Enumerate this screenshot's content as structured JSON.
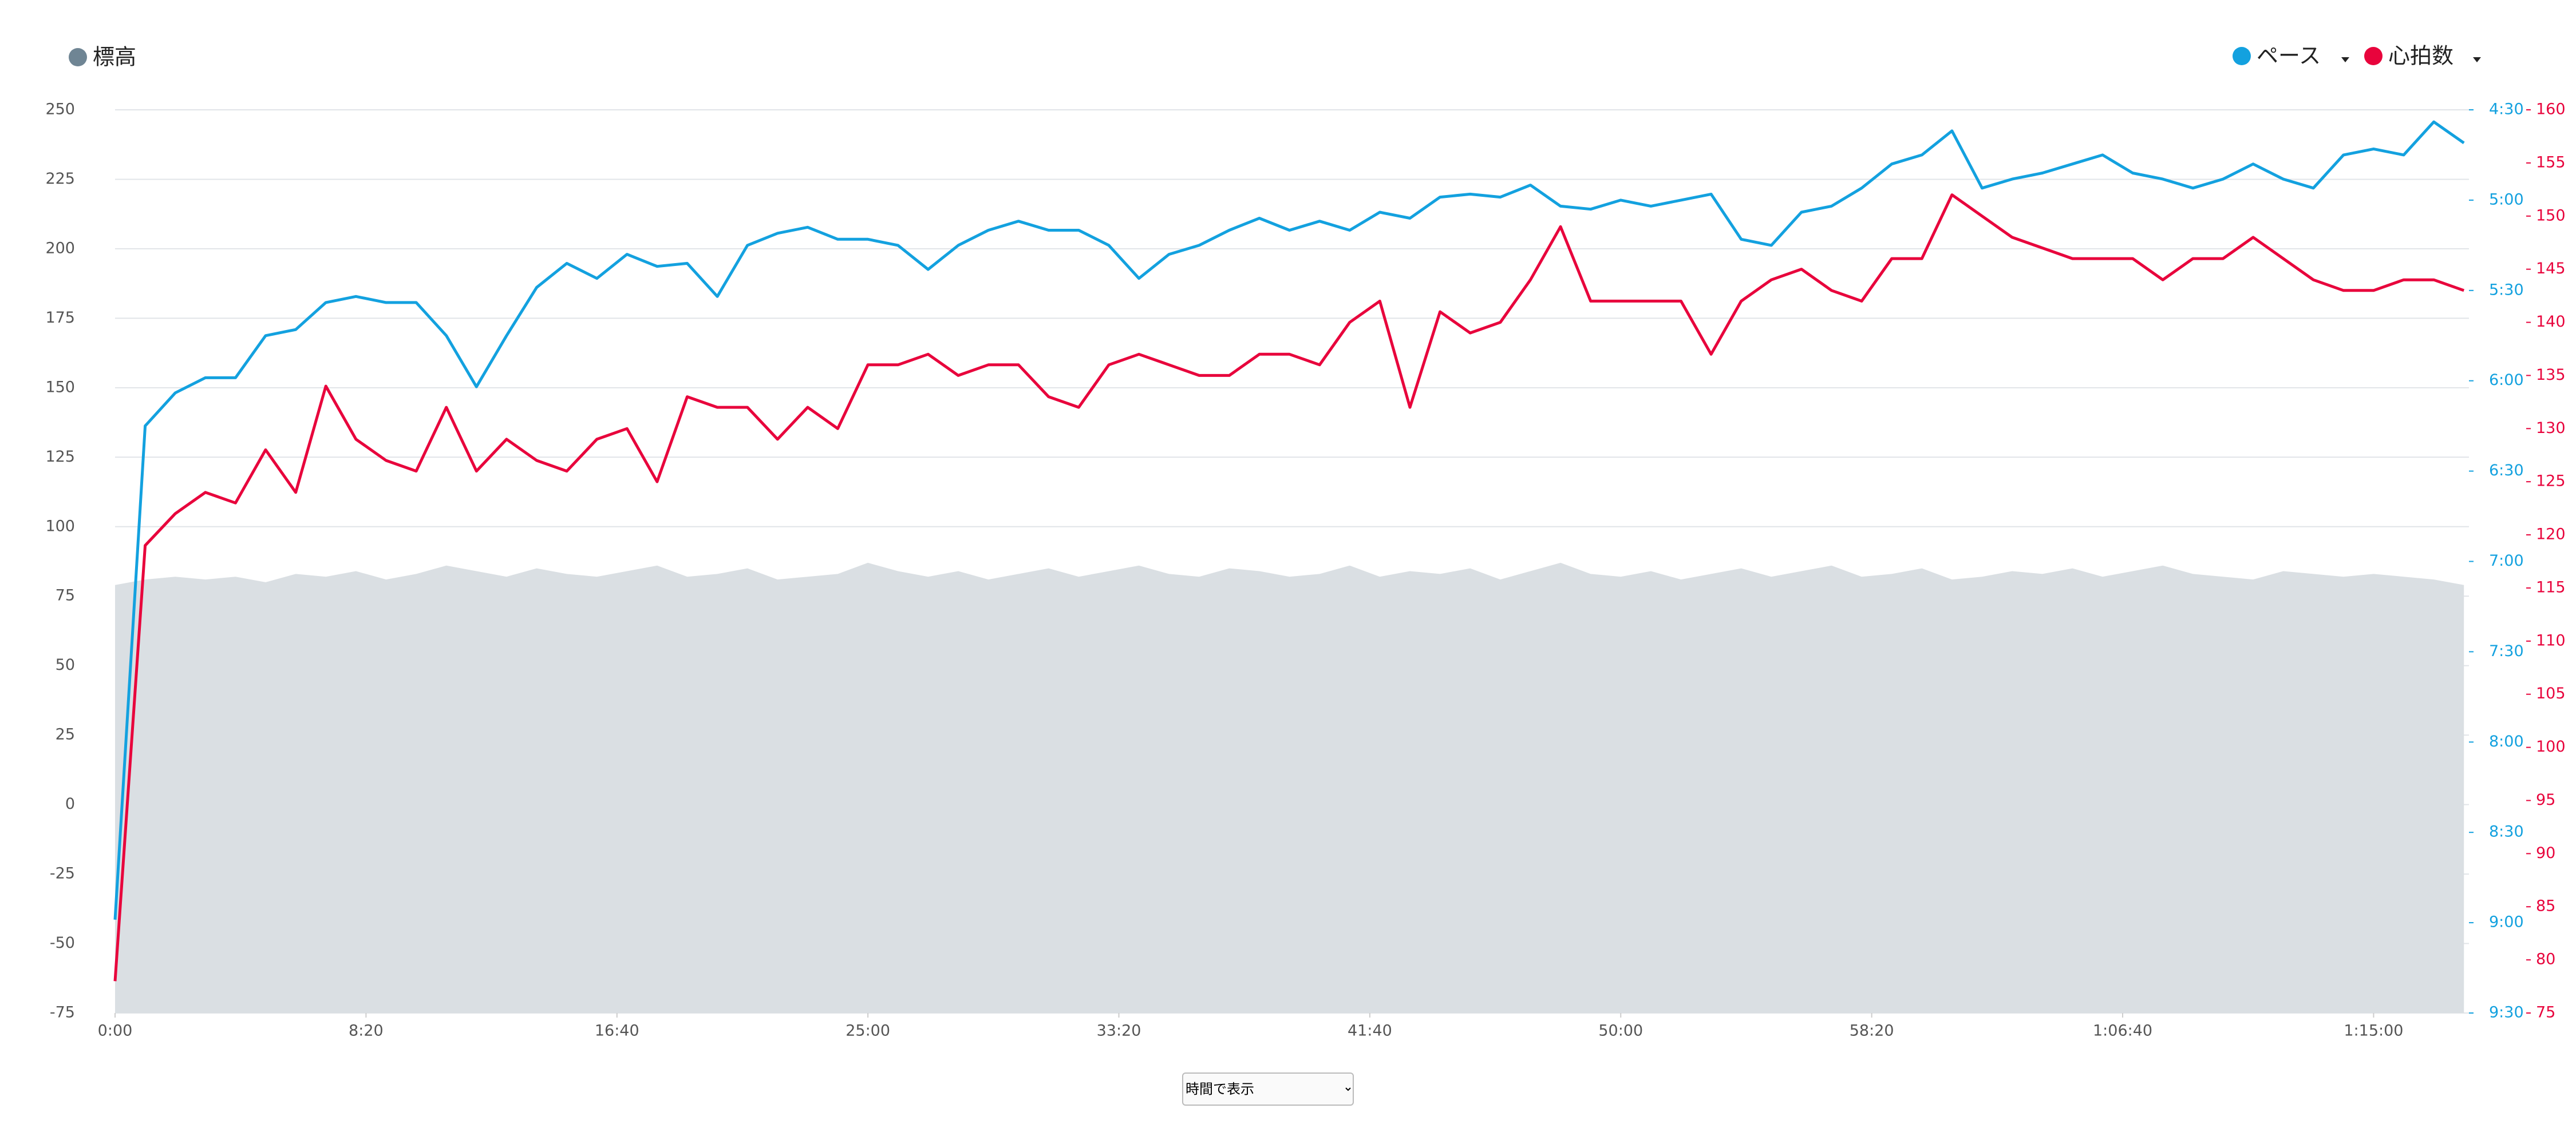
{
  "chart_data": {
    "type": "line",
    "x": [
      0,
      60,
      120,
      180,
      240,
      300,
      360,
      420,
      480,
      540,
      600,
      660,
      720,
      780,
      840,
      900,
      960,
      1020,
      1080,
      1140,
      1200,
      1260,
      1320,
      1380,
      1440,
      1500,
      1560,
      1620,
      1680,
      1740,
      1800,
      1860,
      1920,
      1980,
      2040,
      2100,
      2160,
      2220,
      2280,
      2340,
      2400,
      2460,
      2520,
      2580,
      2640,
      2700,
      2760,
      2820,
      2880,
      2940,
      3000,
      3060,
      3120,
      3180,
      3240,
      3300,
      3360,
      3420,
      3480,
      3540,
      3600,
      3660,
      3720,
      3780,
      3840,
      3900,
      3960,
      4020,
      4080,
      4140,
      4200,
      4260,
      4320,
      4380,
      4440,
      4500,
      4560,
      4620,
      4680
    ],
    "xlim": [
      0,
      4690
    ],
    "xticks": [
      {
        "value": 0,
        "label": "0:00"
      },
      {
        "value": 500,
        "label": "8:20"
      },
      {
        "value": 1000,
        "label": "16:40"
      },
      {
        "value": 1500,
        "label": "25:00"
      },
      {
        "value": 2000,
        "label": "33:20"
      },
      {
        "value": 2500,
        "label": "41:40"
      },
      {
        "value": 3000,
        "label": "50:00"
      },
      {
        "value": 3500,
        "label": "58:20"
      },
      {
        "value": 4000,
        "label": "1:06:40"
      },
      {
        "value": 4500,
        "label": "1:15:00"
      }
    ],
    "ylim": [
      -75,
      250
    ],
    "yticks": [
      -75,
      -50,
      -25,
      0,
      25,
      50,
      75,
      100,
      125,
      150,
      175,
      200,
      225,
      250
    ],
    "y2lim": [
      270,
      570
    ],
    "y2_inverted": true,
    "y2ticks": [
      {
        "value": 270,
        "label": "4:30"
      },
      {
        "value": 300,
        "label": "5:00"
      },
      {
        "value": 330,
        "label": "5:30"
      },
      {
        "value": 360,
        "label": "6:00"
      },
      {
        "value": 390,
        "label": "6:30"
      },
      {
        "value": 420,
        "label": "7:00"
      },
      {
        "value": 450,
        "label": "7:30"
      },
      {
        "value": 480,
        "label": "8:00"
      },
      {
        "value": 510,
        "label": "8:30"
      },
      {
        "value": 540,
        "label": "9:00"
      },
      {
        "value": 570,
        "label": "9:30"
      }
    ],
    "y3lim": [
      75,
      160
    ],
    "y3ticks": [
      75,
      80,
      85,
      90,
      95,
      100,
      105,
      110,
      115,
      120,
      125,
      130,
      135,
      140,
      145,
      150,
      155,
      160
    ],
    "grid": true,
    "series": [
      {
        "name": "標高",
        "color": "#6f8594",
        "area_color": "#dadfe3",
        "axis": "y",
        "type": "area",
        "values": [
          79,
          81,
          82,
          81,
          82,
          80,
          83,
          82,
          84,
          81,
          83,
          86,
          84,
          82,
          85,
          83,
          82,
          84,
          86,
          82,
          83,
          85,
          81,
          82,
          83,
          87,
          84,
          82,
          84,
          81,
          83,
          85,
          82,
          84,
          86,
          83,
          82,
          85,
          84,
          82,
          83,
          86,
          82,
          84,
          83,
          85,
          81,
          84,
          87,
          83,
          82,
          84,
          81,
          83,
          85,
          82,
          84,
          86,
          82,
          83,
          85,
          81,
          82,
          84,
          83,
          85,
          82,
          84,
          86,
          83,
          82,
          81,
          84,
          83,
          82,
          83,
          82,
          81,
          79
        ]
      },
      {
        "name": "ペース",
        "color": "#13a1df",
        "axis": "y2",
        "type": "line",
        "values": [
          539,
          375,
          364,
          359,
          359,
          345,
          343,
          334,
          332,
          334,
          334,
          345,
          362,
          345,
          329,
          321,
          326,
          318,
          322,
          321,
          332,
          315,
          311,
          309,
          313,
          313,
          315,
          323,
          315,
          310,
          307,
          310,
          310,
          315,
          326,
          318,
          315,
          310,
          306,
          310,
          307,
          310,
          304,
          306,
          299,
          298,
          299,
          295,
          302,
          303,
          300,
          302,
          300,
          298,
          313,
          315,
          304,
          302,
          296,
          288,
          285,
          277,
          296,
          293,
          291,
          288,
          285,
          291,
          293,
          296,
          293,
          288,
          293,
          296,
          285,
          283,
          285,
          274,
          281
        ]
      },
      {
        "name": "心拍数",
        "color": "#e8043c",
        "axis": "y3",
        "type": "line",
        "values": [
          78,
          119,
          122,
          124,
          123,
          128,
          124,
          134,
          129,
          127,
          126,
          132,
          126,
          129,
          127,
          126,
          129,
          130,
          125,
          133,
          132,
          132,
          129,
          132,
          130,
          136,
          136,
          137,
          135,
          136,
          136,
          133,
          132,
          136,
          137,
          136,
          135,
          135,
          137,
          137,
          136,
          140,
          142,
          132,
          141,
          139,
          140,
          144,
          149,
          142,
          142,
          142,
          142,
          137,
          142,
          144,
          145,
          143,
          142,
          146,
          146,
          152,
          150,
          148,
          147,
          146,
          146,
          146,
          144,
          146,
          146,
          148,
          146,
          144,
          143,
          143,
          144,
          144,
          143
        ]
      }
    ]
  },
  "view_select": "時間で表示"
}
